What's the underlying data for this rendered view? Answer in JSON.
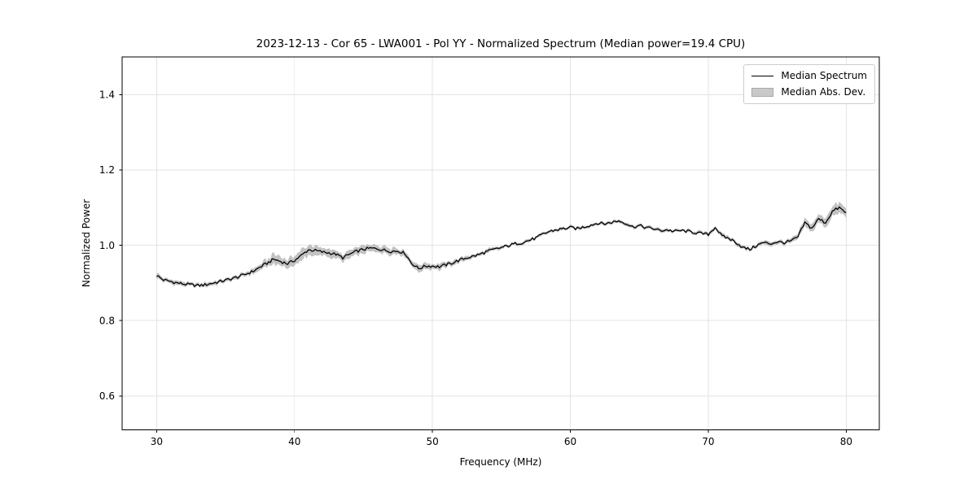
{
  "chart_data": {
    "type": "line",
    "title": "2023-12-13 - Cor 65 - LWA001 - Pol YY - Normalized Spectrum (Median power=19.4 CPU)",
    "xlabel": "Frequency (MHz)",
    "ylabel": "Normalized Power",
    "xlim": [
      27.5,
      82.4
    ],
    "ylim": [
      0.51,
      1.5
    ],
    "xticks": [
      30,
      40,
      50,
      60,
      70,
      80
    ],
    "xtick_labels": [
      "30",
      "40",
      "50",
      "60",
      "70",
      "80"
    ],
    "yticks": [
      0.6,
      0.8,
      1.0,
      1.2,
      1.4
    ],
    "ytick_labels": [
      "0.6",
      "0.8",
      "1.0",
      "1.2",
      "1.4"
    ],
    "grid": true,
    "legend": {
      "position": "upper right",
      "items": [
        {
          "label": "Median Spectrum",
          "type": "line",
          "color": "#000000"
        },
        {
          "label": "Median Abs. Dev.",
          "type": "patch",
          "color": "#c9c9c9",
          "edge": "#a8a8a8"
        }
      ]
    },
    "series": [
      {
        "name": "Median Spectrum",
        "x": [
          30.0,
          30.5,
          31.0,
          31.5,
          32.0,
          32.5,
          33.0,
          33.5,
          34.0,
          34.5,
          35.0,
          35.5,
          36.0,
          36.5,
          37.0,
          37.5,
          38.0,
          38.5,
          39.0,
          39.5,
          40.0,
          40.5,
          41.0,
          41.5,
          42.0,
          42.5,
          43.0,
          43.5,
          44.0,
          44.5,
          45.0,
          45.5,
          46.0,
          46.5,
          47.0,
          47.5,
          48.0,
          48.5,
          49.0,
          49.5,
          50.0,
          50.5,
          51.0,
          51.5,
          52.0,
          52.5,
          53.0,
          53.5,
          54.0,
          54.5,
          55.0,
          55.5,
          56.0,
          56.5,
          57.0,
          57.5,
          58.0,
          58.5,
          59.0,
          59.5,
          60.0,
          60.5,
          61.0,
          61.5,
          62.0,
          62.5,
          63.0,
          63.5,
          64.0,
          64.5,
          65.0,
          65.5,
          66.0,
          66.5,
          67.0,
          67.5,
          68.0,
          68.5,
          69.0,
          69.5,
          70.0,
          70.5,
          71.0,
          71.5,
          72.0,
          72.5,
          73.0,
          73.5,
          74.0,
          74.5,
          75.0,
          75.5,
          76.0,
          76.5,
          77.0,
          77.5,
          78.0,
          78.5,
          79.0,
          79.5,
          80.0
        ],
        "y": [
          0.92,
          0.908,
          0.904,
          0.9,
          0.897,
          0.895,
          0.893,
          0.895,
          0.899,
          0.903,
          0.907,
          0.912,
          0.917,
          0.924,
          0.931,
          0.942,
          0.952,
          0.963,
          0.957,
          0.951,
          0.96,
          0.973,
          0.988,
          0.986,
          0.982,
          0.98,
          0.976,
          0.967,
          0.976,
          0.984,
          0.989,
          0.992,
          0.991,
          0.987,
          0.984,
          0.985,
          0.979,
          0.952,
          0.938,
          0.945,
          0.945,
          0.943,
          0.948,
          0.954,
          0.961,
          0.967,
          0.971,
          0.977,
          0.984,
          0.989,
          0.994,
          0.999,
          1.004,
          1.007,
          1.013,
          1.019,
          1.029,
          1.037,
          1.041,
          1.044,
          1.047,
          1.044,
          1.049,
          1.054,
          1.059,
          1.057,
          1.061,
          1.065,
          1.059,
          1.049,
          1.052,
          1.047,
          1.044,
          1.039,
          1.041,
          1.037,
          1.039,
          1.037,
          1.034,
          1.031,
          1.029,
          1.048,
          1.024,
          1.018,
          1.008,
          0.994,
          0.989,
          0.999,
          1.007,
          1.004,
          1.009,
          1.007,
          1.011,
          1.022,
          1.06,
          1.045,
          1.07,
          1.06,
          1.09,
          1.1,
          1.085
        ]
      },
      {
        "name": "Median Abs. Dev.",
        "band_halfwidth": [
          0.007,
          0.006,
          0.006,
          0.006,
          0.005,
          0.005,
          0.005,
          0.005,
          0.005,
          0.005,
          0.005,
          0.005,
          0.005,
          0.005,
          0.007,
          0.009,
          0.012,
          0.014,
          0.013,
          0.012,
          0.013,
          0.014,
          0.013,
          0.012,
          0.01,
          0.01,
          0.009,
          0.009,
          0.01,
          0.011,
          0.011,
          0.01,
          0.01,
          0.009,
          0.009,
          0.008,
          0.008,
          0.009,
          0.009,
          0.009,
          0.008,
          0.008,
          0.007,
          0.006,
          0.006,
          0.006,
          0.005,
          0.005,
          0.005,
          0.005,
          0.004,
          0.004,
          0.004,
          0.004,
          0.004,
          0.004,
          0.004,
          0.004,
          0.004,
          0.004,
          0.004,
          0.004,
          0.004,
          0.004,
          0.004,
          0.004,
          0.004,
          0.004,
          0.004,
          0.004,
          0.004,
          0.004,
          0.004,
          0.004,
          0.004,
          0.004,
          0.004,
          0.004,
          0.004,
          0.004,
          0.005,
          0.005,
          0.005,
          0.005,
          0.005,
          0.005,
          0.005,
          0.005,
          0.005,
          0.005,
          0.005,
          0.005,
          0.006,
          0.008,
          0.01,
          0.01,
          0.011,
          0.012,
          0.013,
          0.014,
          0.012
        ]
      }
    ],
    "style": {
      "line_color": "#000000",
      "line_width": 1.3,
      "band_color": "#c2c2c2",
      "grid_color": "#e3e3e3",
      "spine_color": "#000000",
      "jitter": 0.004
    }
  }
}
